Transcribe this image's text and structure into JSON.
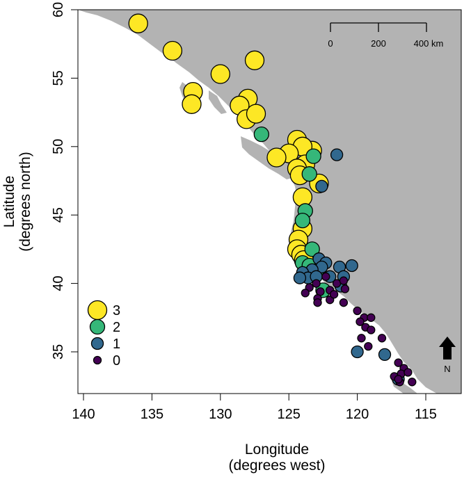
{
  "chart_data": {
    "type": "scatter",
    "subtype": "map",
    "xlabel": "Longitude",
    "xlabel_sub": "(degrees west)",
    "ylabel": "Latitude",
    "ylabel_sub": "(degrees north)",
    "xlim": [
      140,
      112
    ],
    "ylim": [
      32,
      60
    ],
    "x_ticks": [
      140,
      135,
      130,
      125,
      120,
      115
    ],
    "y_ticks": [
      35,
      40,
      45,
      50,
      55,
      60
    ],
    "colors": {
      "3": "#FDE725",
      "2": "#35B779",
      "1": "#31688E",
      "0": "#440154",
      "land": "#B3B3B3"
    },
    "scale_bar": {
      "labels": [
        "0",
        "200",
        "400 km"
      ]
    },
    "north_arrow": {
      "label": "N"
    },
    "legend": [
      {
        "label": "3",
        "value": 3
      },
      {
        "label": "2",
        "value": 2
      },
      {
        "label": "1",
        "value": 1
      },
      {
        "label": "0",
        "value": 0
      }
    ],
    "points": [
      {
        "lon": 136.0,
        "lat": 59.0,
        "v": 3
      },
      {
        "lon": 133.5,
        "lat": 57.0,
        "v": 3
      },
      {
        "lon": 130.0,
        "lat": 55.3,
        "v": 3
      },
      {
        "lon": 127.5,
        "lat": 56.3,
        "v": 3
      },
      {
        "lon": 132.0,
        "lat": 54.0,
        "v": 3
      },
      {
        "lon": 132.1,
        "lat": 53.1,
        "v": 3
      },
      {
        "lon": 128.0,
        "lat": 53.5,
        "v": 3
      },
      {
        "lon": 128.6,
        "lat": 53.0,
        "v": 3
      },
      {
        "lon": 128.1,
        "lat": 52.0,
        "v": 3
      },
      {
        "lon": 127.4,
        "lat": 52.4,
        "v": 3
      },
      {
        "lon": 124.4,
        "lat": 50.5,
        "v": 3
      },
      {
        "lon": 123.3,
        "lat": 49.7,
        "v": 3
      },
      {
        "lon": 124.0,
        "lat": 50.0,
        "v": 3
      },
      {
        "lon": 125.0,
        "lat": 49.5,
        "v": 3
      },
      {
        "lon": 125.9,
        "lat": 49.2,
        "v": 3
      },
      {
        "lon": 123.8,
        "lat": 48.7,
        "v": 3
      },
      {
        "lon": 124.4,
        "lat": 48.4,
        "v": 3
      },
      {
        "lon": 124.2,
        "lat": 47.9,
        "v": 3
      },
      {
        "lon": 122.8,
        "lat": 47.3,
        "v": 3
      },
      {
        "lon": 124.0,
        "lat": 46.3,
        "v": 3
      },
      {
        "lon": 124.0,
        "lat": 44.0,
        "v": 3
      },
      {
        "lon": 124.3,
        "lat": 43.2,
        "v": 3
      },
      {
        "lon": 124.4,
        "lat": 42.5,
        "v": 3
      },
      {
        "lon": 124.1,
        "lat": 42.1,
        "v": 3
      },
      {
        "lon": 123.9,
        "lat": 41.7,
        "v": 3
      },
      {
        "lon": 127.0,
        "lat": 50.9,
        "v": 2
      },
      {
        "lon": 123.2,
        "lat": 49.3,
        "v": 2
      },
      {
        "lon": 123.5,
        "lat": 48.0,
        "v": 2
      },
      {
        "lon": 123.8,
        "lat": 45.3,
        "v": 2
      },
      {
        "lon": 124.0,
        "lat": 44.6,
        "v": 2
      },
      {
        "lon": 123.3,
        "lat": 42.5,
        "v": 2
      },
      {
        "lon": 124.0,
        "lat": 41.5,
        "v": 2
      },
      {
        "lon": 123.5,
        "lat": 41.3,
        "v": 2
      },
      {
        "lon": 123.0,
        "lat": 40.9,
        "v": 2
      },
      {
        "lon": 122.5,
        "lat": 39.5,
        "v": 2
      },
      {
        "lon": 121.5,
        "lat": 49.4,
        "v": 1
      },
      {
        "lon": 122.6,
        "lat": 47.1,
        "v": 1
      },
      {
        "lon": 122.8,
        "lat": 41.8,
        "v": 1
      },
      {
        "lon": 122.3,
        "lat": 41.5,
        "v": 1
      },
      {
        "lon": 121.3,
        "lat": 41.2,
        "v": 1
      },
      {
        "lon": 120.4,
        "lat": 41.3,
        "v": 1
      },
      {
        "lon": 122.6,
        "lat": 41.2,
        "v": 1
      },
      {
        "lon": 123.3,
        "lat": 41.0,
        "v": 1
      },
      {
        "lon": 124.0,
        "lat": 40.8,
        "v": 1
      },
      {
        "lon": 123.6,
        "lat": 40.4,
        "v": 1
      },
      {
        "lon": 124.2,
        "lat": 40.4,
        "v": 1
      },
      {
        "lon": 123.0,
        "lat": 40.5,
        "v": 1
      },
      {
        "lon": 122.0,
        "lat": 40.5,
        "v": 1
      },
      {
        "lon": 121.0,
        "lat": 40.5,
        "v": 1
      },
      {
        "lon": 121.2,
        "lat": 39.8,
        "v": 1
      },
      {
        "lon": 120.0,
        "lat": 35.0,
        "v": 1
      },
      {
        "lon": 118.0,
        "lat": 34.8,
        "v": 1
      },
      {
        "lon": 117.0,
        "lat": 33.0,
        "v": 1
      },
      {
        "lon": 123.5,
        "lat": 39.7,
        "v": 0
      },
      {
        "lon": 123.0,
        "lat": 40.0,
        "v": 0
      },
      {
        "lon": 122.7,
        "lat": 39.4,
        "v": 0
      },
      {
        "lon": 123.8,
        "lat": 39.3,
        "v": 0
      },
      {
        "lon": 122.9,
        "lat": 38.9,
        "v": 0
      },
      {
        "lon": 122.9,
        "lat": 38.6,
        "v": 0
      },
      {
        "lon": 122.0,
        "lat": 39.5,
        "v": 0
      },
      {
        "lon": 122.0,
        "lat": 38.8,
        "v": 0
      },
      {
        "lon": 121.7,
        "lat": 39.2,
        "v": 0
      },
      {
        "lon": 121.5,
        "lat": 40.0,
        "v": 0
      },
      {
        "lon": 121.0,
        "lat": 40.2,
        "v": 0
      },
      {
        "lon": 120.9,
        "lat": 39.6,
        "v": 0
      },
      {
        "lon": 121.0,
        "lat": 38.6,
        "v": 0
      },
      {
        "lon": 122.3,
        "lat": 40.5,
        "v": 0
      },
      {
        "lon": 120.0,
        "lat": 38.0,
        "v": 0
      },
      {
        "lon": 119.5,
        "lat": 37.5,
        "v": 0
      },
      {
        "lon": 119.8,
        "lat": 37.2,
        "v": 0
      },
      {
        "lon": 119.0,
        "lat": 37.5,
        "v": 0
      },
      {
        "lon": 119.4,
        "lat": 36.8,
        "v": 0
      },
      {
        "lon": 119.0,
        "lat": 36.6,
        "v": 0
      },
      {
        "lon": 119.7,
        "lat": 36.0,
        "v": 0
      },
      {
        "lon": 119.2,
        "lat": 35.4,
        "v": 0
      },
      {
        "lon": 118.2,
        "lat": 36.0,
        "v": 0
      },
      {
        "lon": 117.0,
        "lat": 34.2,
        "v": 0
      },
      {
        "lon": 116.6,
        "lat": 33.8,
        "v": 0
      },
      {
        "lon": 116.8,
        "lat": 33.4,
        "v": 0
      },
      {
        "lon": 116.3,
        "lat": 33.5,
        "v": 0
      },
      {
        "lon": 117.3,
        "lat": 33.2,
        "v": 0
      },
      {
        "lon": 116.9,
        "lat": 32.8,
        "v": 0
      },
      {
        "lon": 116.0,
        "lat": 32.8,
        "v": 0
      },
      {
        "lon": 117.0,
        "lat": 33.0,
        "v": 0
      }
    ]
  }
}
